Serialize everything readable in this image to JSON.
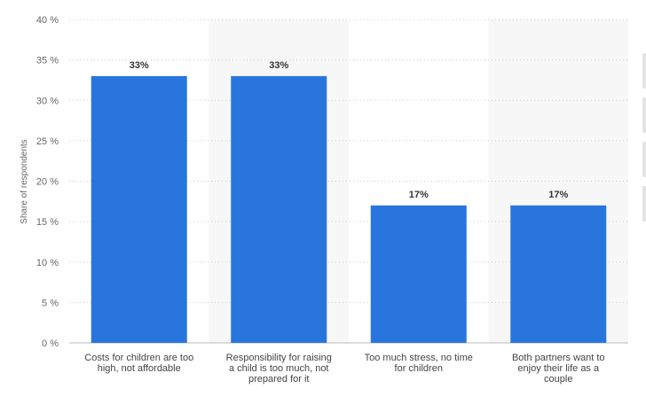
{
  "chart_data": {
    "type": "bar",
    "ylabel": "Share of respondents",
    "xlabel": "",
    "ylim": [
      0,
      40
    ],
    "yticks": [
      0,
      5,
      10,
      15,
      20,
      25,
      30,
      35,
      40
    ],
    "ytick_suffix": " %",
    "grid": true,
    "categories": [
      "Costs for children are too high, not affordable",
      "Responsibility for raising a child is too much, not prepared for it",
      "Too much stress, no time for children",
      "Both partners want to enjoy their life as a couple"
    ],
    "values": [
      33,
      33,
      17,
      17
    ],
    "data_labels": [
      "33%",
      "33%",
      "17%",
      "17%"
    ],
    "colors": {
      "bar": "#2876dd",
      "band": "#f7f7f7"
    }
  }
}
